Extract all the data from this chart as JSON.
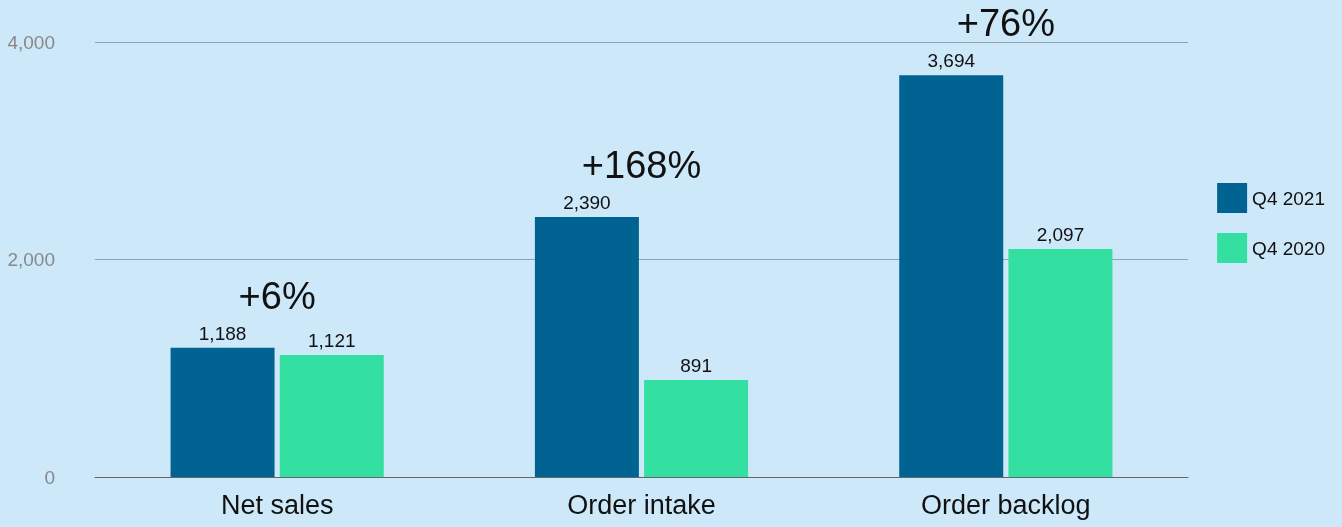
{
  "chart_data": {
    "type": "bar",
    "categories": [
      "Net sales",
      "Order intake",
      "Order backlog"
    ],
    "series": [
      {
        "name": "Q4 2021",
        "color": "#006391",
        "values": [
          1188,
          2390,
          3694
        ],
        "value_labels": [
          "1,188",
          "2,390",
          "3,694"
        ]
      },
      {
        "name": "Q4 2020",
        "color": "#33e0a1",
        "values": [
          1121,
          891,
          2097
        ],
        "value_labels": [
          "1,121",
          "891",
          "2,097"
        ]
      }
    ],
    "annotations": [
      "+6%",
      "+168%",
      "+76%"
    ],
    "ylim": [
      0,
      4000
    ],
    "yticks": [
      0,
      {
        "value": 2000,
        "label": "2,000"
      },
      {
        "value": 4000,
        "label": "4,000"
      }
    ],
    "grid": "y",
    "legend": "right"
  }
}
